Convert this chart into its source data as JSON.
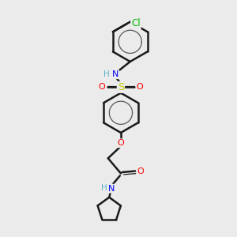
{
  "background_color": "#ebebeb",
  "bond_color": "#1a1a1a",
  "bond_width": 1.8,
  "atom_colors": {
    "C": "#1a1a1a",
    "H": "#5ab4c8",
    "N": "#0000ff",
    "O": "#ff0000",
    "S": "#cccc00",
    "Cl": "#00bb00"
  },
  "font_size": 8.0,
  "figure_size": [
    3.0,
    3.0
  ]
}
